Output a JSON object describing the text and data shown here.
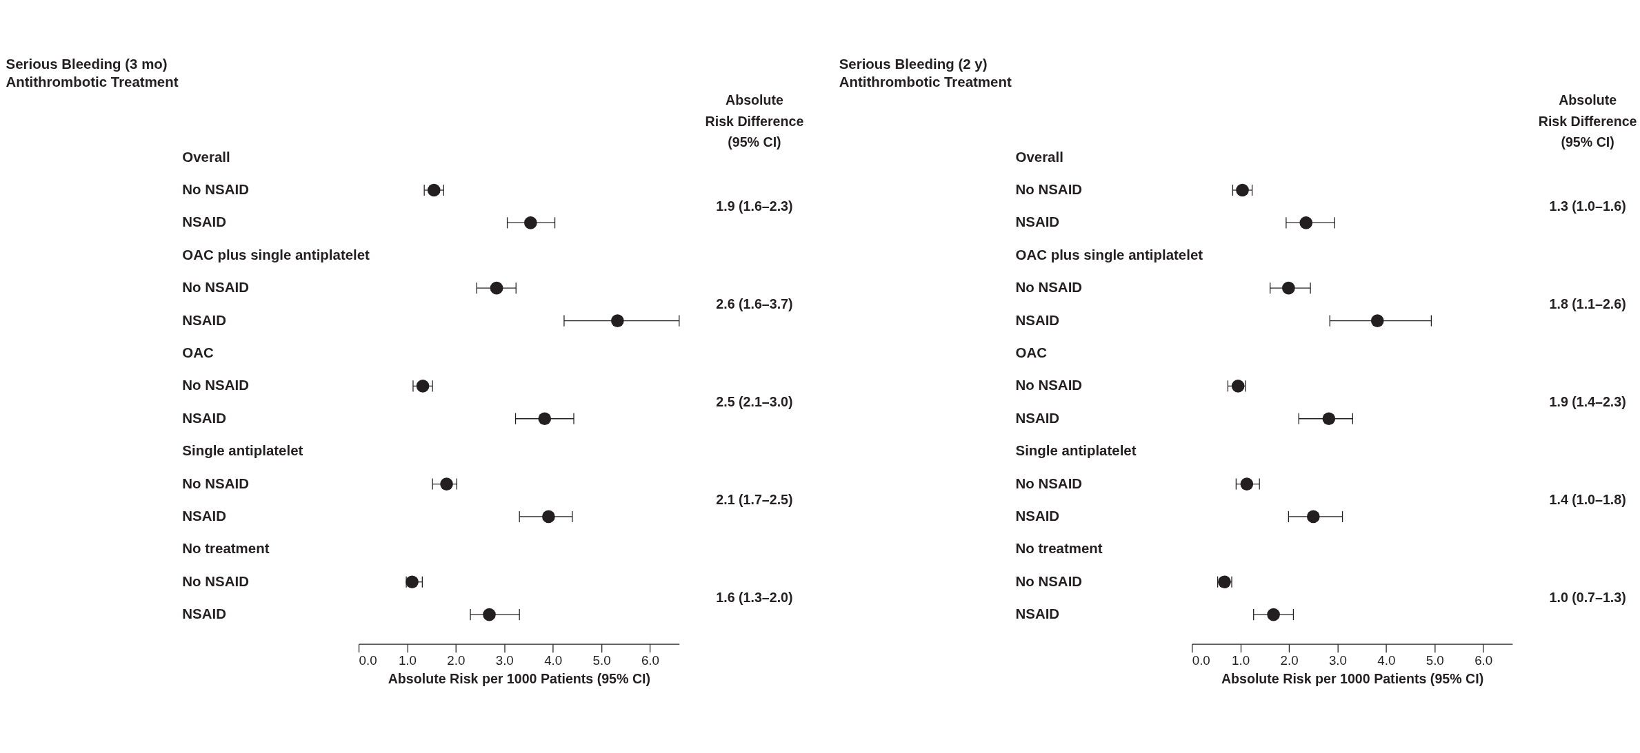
{
  "chart_data": [
    {
      "type": "scatter",
      "orientation": "horizontal",
      "title": "Serious Bleeding (3 mo)",
      "subtitle": "Antithrombotic Treatment",
      "xlabel": "Absolute Risk per 1000 Patients (95% CI)",
      "categories": [
        "Overall",
        "No NSAID",
        "NSAID",
        "OAC plus single antiplatelet",
        "No NSAID",
        "NSAID",
        "OAC",
        "No NSAID",
        "NSAID",
        "Single antiplatelet",
        "No NSAID",
        "NSAID",
        "No treatment",
        "No NSAID",
        "NSAID"
      ],
      "series": [
        {
          "color": "#231f20",
          "values": [
            null,
            1.55,
            3.54,
            null,
            2.84,
            5.33,
            null,
            1.32,
            3.83,
            null,
            1.81,
            3.91,
            null,
            1.1,
            2.69
          ],
          "errors": [
            null,
            [
              1.35,
              1.75
            ],
            [
              3.06,
              4.04
            ],
            null,
            [
              2.43,
              3.24
            ],
            [
              4.23,
              6.6
            ],
            null,
            [
              1.12,
              1.52
            ],
            [
              3.23,
              4.43
            ],
            null,
            [
              1.52,
              2.02
            ],
            [
              3.31,
              4.4
            ],
            null,
            [
              0.98,
              1.31
            ],
            [
              2.3,
              3.31
            ]
          ]
        }
      ],
      "xlim": [
        0,
        6.6
      ],
      "xticks": [
        {
          "value": 0,
          "label": "0.0"
        },
        {
          "value": 1,
          "label": "1.0"
        },
        {
          "value": 2,
          "label": "2.0"
        },
        {
          "value": 3,
          "label": "3.0"
        },
        {
          "value": 4,
          "label": "4.0"
        },
        {
          "value": 5,
          "label": "5.0"
        },
        {
          "value": 6,
          "label": "6.0"
        }
      ],
      "annotations": [
        "Absolute\nRisk Difference\n(95% CI)",
        "1.9 (1.6–2.3)",
        "2.6 (1.6–3.7)",
        "2.5 (2.1–3.0)",
        "2.1 (1.7–2.5)",
        "1.6 (1.3–2.0)"
      ],
      "marker": "circle",
      "grid": false
    },
    {
      "type": "scatter",
      "orientation": "horizontal",
      "title": "Serious Bleeding (2 y)",
      "subtitle": "Antithrombotic Treatment",
      "xlabel": "Absolute Risk per 1000 Patients (95% CI)",
      "categories": [
        "Overall",
        "No NSAID",
        "NSAID",
        "OAC plus single antiplatelet",
        "No NSAID",
        "NSAID",
        "OAC",
        "No NSAID",
        "NSAID",
        "Single antiplatelet",
        "No NSAID",
        "NSAID",
        "No treatment",
        "No NSAID",
        "NSAID"
      ],
      "series": [
        {
          "color": "#231f20",
          "values": [
            null,
            1.04,
            2.35,
            null,
            1.99,
            3.82,
            null,
            0.95,
            2.82,
            null,
            1.13,
            2.5,
            null,
            0.67,
            1.68
          ],
          "errors": [
            null,
            [
              0.84,
              1.24
            ],
            [
              1.94,
              2.94
            ],
            null,
            [
              1.61,
              2.44
            ],
            [
              2.84,
              4.93
            ],
            null,
            [
              0.74,
              1.1
            ],
            [
              2.2,
              3.31
            ],
            null,
            [
              0.91,
              1.39
            ],
            [
              1.99,
              3.1
            ],
            null,
            [
              0.53,
              0.82
            ],
            [
              1.27,
              2.09
            ]
          ]
        }
      ],
      "xlim": [
        0,
        6.6
      ],
      "xticks": [
        {
          "value": 0,
          "label": "0.0"
        },
        {
          "value": 1,
          "label": "1.0"
        },
        {
          "value": 2,
          "label": "2.0"
        },
        {
          "value": 3,
          "label": "3.0"
        },
        {
          "value": 4,
          "label": "4.0"
        },
        {
          "value": 5,
          "label": "5.0"
        },
        {
          "value": 6,
          "label": "6.0"
        }
      ],
      "annotations": [
        "Absolute\nRisk Difference\n(95% CI)",
        "1.3 (1.0–1.6)",
        "1.8 (1.1–2.6)",
        "1.9 (1.4–2.3)",
        "1.4 (1.0–1.8)",
        "1.0 (0.7–1.3)"
      ],
      "marker": "circle",
      "grid": false
    }
  ]
}
